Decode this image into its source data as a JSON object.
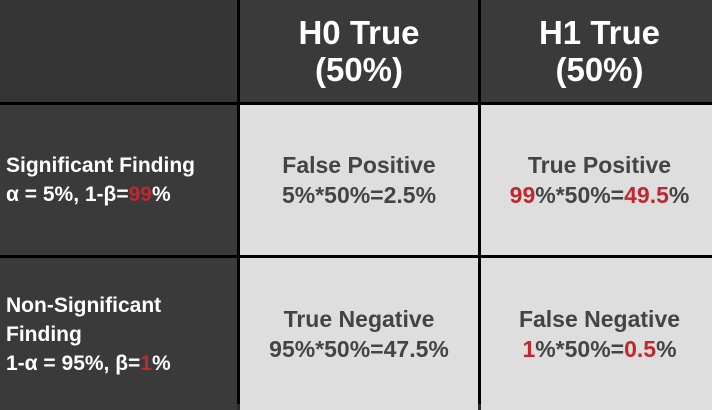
{
  "columns": [
    {
      "title": "H0 True",
      "share": "(50%)"
    },
    {
      "title": "H1 True",
      "share": "(50%)"
    }
  ],
  "rows": [
    {
      "label_line1": "Significant Finding",
      "label_line2_prefix": "α = 5%, 1-β=",
      "label_line2_red": "99",
      "label_line2_suffix": "%",
      "cells": [
        {
          "title": "False Positive",
          "formula_a": "5%*50%=2.5%"
        },
        {
          "title": "True Positive",
          "f_red1": "99",
          "f_mid": "%*50%=",
          "f_red2": "49.5",
          "f_end": "%"
        }
      ]
    },
    {
      "label_line1": "Non-Significant",
      "label_line2": "Finding",
      "label_line3_prefix": "1-α = 95%, β=",
      "label_line3_red": "1",
      "label_line3_suffix": "%",
      "cells": [
        {
          "title": "True Negative",
          "formula_a": "95%*50%=47.5%"
        },
        {
          "title": "False Negative",
          "f_red1": "1",
          "f_mid": "%*50%=",
          "f_red2": "0.5",
          "f_end": "%"
        }
      ]
    }
  ],
  "colors": {
    "accent_red": "#c0282d",
    "dark_cell": "#3a3a3a",
    "light_cell": "#dedede"
  }
}
